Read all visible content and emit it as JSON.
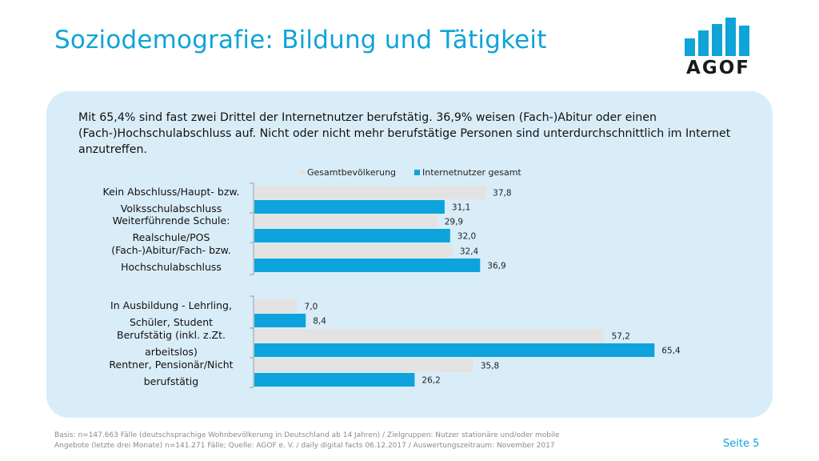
{
  "title": "Soziodemografie: Bildung und Tätigkeit",
  "logo": {
    "text": "AGOF",
    "color": "#0fa4d8"
  },
  "intro": "Mit 65,4% sind fast zwei Drittel der Internetnutzer berufstätig. 36,9% weisen (Fach-)Abitur oder einen (Fach-)Hochschulabschluss auf. Nicht oder nicht mehr berufstätige Personen sind unterdurchschnittlich im Internet anzutreffen.",
  "chart_data": {
    "type": "bar",
    "orientation": "horizontal",
    "legend_position": "top",
    "grid": false,
    "xlim": [
      0,
      70
    ],
    "categories": [
      [
        "Kein Abschluss/Haupt- bzw.",
        "Volksschulabschluss"
      ],
      [
        "Weiterführende Schule:",
        "Realschule/POS"
      ],
      [
        "(Fach-)Abitur/Fach- bzw.",
        "Hochschulabschluss"
      ],
      [
        "In Ausbildung - Lehrling,",
        "Schüler, Student"
      ],
      [
        "Berufstätig (inkl. z.Zt.",
        "arbeitslos)"
      ],
      [
        "Rentner, Pensionär/Nicht",
        "berufstätig"
      ]
    ],
    "series": [
      {
        "name": "Gesamtbevölkerung",
        "color": "#e3e3e3",
        "values": [
          37.8,
          29.9,
          32.4,
          7.0,
          57.2,
          35.8
        ],
        "labels": [
          "37,8",
          "29,9",
          "32,4",
          "7,0",
          "57,2",
          "35,8"
        ]
      },
      {
        "name": "Internetnutzer gesamt",
        "color": "#0ea3dc",
        "values": [
          31.1,
          32.0,
          36.9,
          8.4,
          65.4,
          26.2
        ],
        "labels": [
          "31,1",
          "32,0",
          "36,9",
          "8,4",
          "65,4",
          "26,2"
        ]
      }
    ]
  },
  "footnote": {
    "line1": "Basis: n=147.663 Fälle (deutschsprachige Wohnbevölkerung in Deutschland ab 14 Jahren) / Zielgruppen: Nutzer stationäre und/oder mobile",
    "line2": "Angebote (letzte drei Monate) n=141.271 Fälle; Quelle: AGOF e. V. / daily digital facts 06.12.2017 / Auswertungszeitraum: November 2017"
  },
  "page": "Seite 5"
}
